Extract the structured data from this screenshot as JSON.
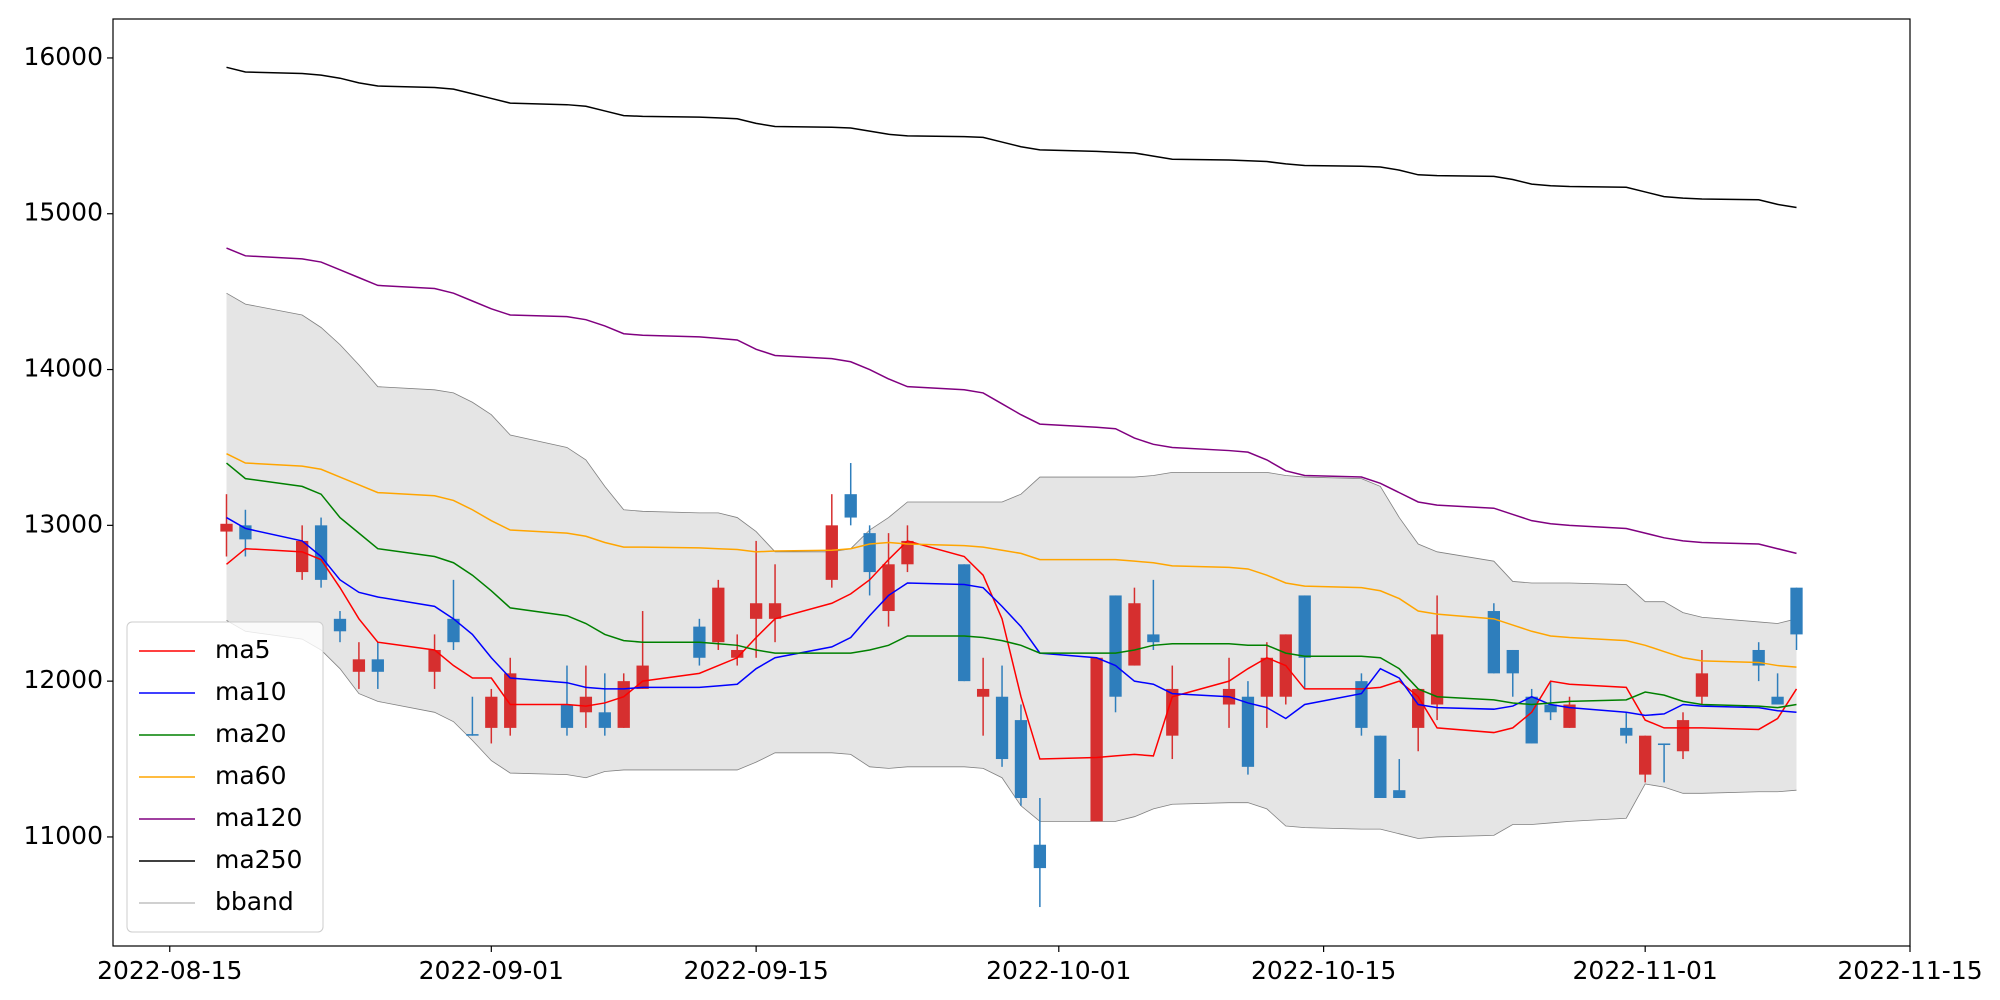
{
  "chart_data": {
    "type": "candlestick",
    "x": [
      "2022-08-18",
      "2022-08-19",
      "2022-08-22",
      "2022-08-23",
      "2022-08-24",
      "2022-08-25",
      "2022-08-26",
      "2022-08-29",
      "2022-08-30",
      "2022-08-31",
      "2022-09-01",
      "2022-09-02",
      "2022-09-05",
      "2022-09-06",
      "2022-09-07",
      "2022-09-08",
      "2022-09-09",
      "2022-09-12",
      "2022-09-13",
      "2022-09-14",
      "2022-09-15",
      "2022-09-16",
      "2022-09-19",
      "2022-09-20",
      "2022-09-21",
      "2022-09-22",
      "2022-09-23",
      "2022-09-26",
      "2022-09-27",
      "2022-09-28",
      "2022-09-29",
      "2022-09-30",
      "2022-10-03",
      "2022-10-04",
      "2022-10-05",
      "2022-10-06",
      "2022-10-07",
      "2022-10-10",
      "2022-10-11",
      "2022-10-12",
      "2022-10-13",
      "2022-10-14",
      "2022-10-17",
      "2022-10-18",
      "2022-10-19",
      "2022-10-20",
      "2022-10-21",
      "2022-10-24",
      "2022-10-25",
      "2022-10-26",
      "2022-10-27",
      "2022-10-28",
      "2022-10-31",
      "2022-11-01",
      "2022-11-02",
      "2022-11-03",
      "2022-11-04",
      "2022-11-07",
      "2022-11-08",
      "2022-11-09"
    ],
    "candles": {
      "up_color": "#d62f2f",
      "down_color": "#2e7ebc",
      "open": [
        12960,
        13000,
        12700,
        13000,
        12400,
        12060,
        12140,
        12060,
        12400,
        11660,
        11700,
        11700,
        11850,
        11800,
        11800,
        11700,
        11950,
        12350,
        12250,
        12150,
        12400,
        12400,
        12650,
        13200,
        12950,
        12450,
        12750,
        12750,
        11900,
        11900,
        11750,
        10950,
        11100,
        12550,
        12100,
        12300,
        11650,
        11850,
        11900,
        11900,
        11900,
        12550,
        12000,
        11650,
        11300,
        11700,
        11850,
        12450,
        12200,
        11900,
        11850,
        11700,
        11700,
        11400,
        11600,
        11550,
        11900,
        12200,
        11900,
        12600
      ],
      "high": [
        13200,
        13100,
        13000,
        13050,
        12450,
        12250,
        12250,
        12300,
        12650,
        11900,
        11950,
        12150,
        12100,
        12100,
        12050,
        12050,
        12450,
        12400,
        12650,
        12300,
        12900,
        12750,
        13200,
        13400,
        13000,
        12950,
        13000,
        12750,
        12150,
        12100,
        11850,
        11250,
        12150,
        12550,
        12600,
        12650,
        12100,
        12150,
        12000,
        12250,
        12300,
        12550,
        12050,
        11650,
        11500,
        11950,
        12550,
        12500,
        12200,
        11950,
        12000,
        11900,
        11800,
        11650,
        11600,
        11800,
        12200,
        12250,
        12050,
        12600
      ],
      "low": [
        12800,
        12800,
        12650,
        12600,
        12250,
        11950,
        11950,
        11950,
        12200,
        11650,
        11600,
        11650,
        11650,
        11700,
        11650,
        11700,
        11950,
        12100,
        12200,
        12100,
        12150,
        12250,
        12600,
        13000,
        12550,
        12350,
        12700,
        12000,
        11650,
        11450,
        11200,
        10550,
        11100,
        11800,
        12100,
        12200,
        11500,
        11700,
        11400,
        11700,
        11850,
        11950,
        11650,
        11250,
        11250,
        11550,
        11750,
        12050,
        11900,
        11600,
        11750,
        11700,
        11600,
        11350,
        11350,
        11500,
        11850,
        12000,
        11850,
        12200
      ],
      "close": [
        13010,
        12910,
        12900,
        12650,
        12320,
        12140,
        12060,
        12200,
        12250,
        11650,
        11900,
        12050,
        11700,
        11900,
        11700,
        12000,
        12100,
        12150,
        12600,
        12200,
        12500,
        12500,
        13000,
        13050,
        12700,
        12750,
        12900,
        12000,
        11950,
        11500,
        11250,
        10800,
        12150,
        11900,
        12500,
        12250,
        11950,
        11950,
        11450,
        12150,
        12300,
        12150,
        11700,
        11250,
        11250,
        11950,
        12300,
        12050,
        12050,
        11600,
        11800,
        11850,
        11650,
        11650,
        11590,
        11750,
        12050,
        12100,
        11850,
        12300
      ]
    },
    "series": [
      {
        "name": "ma5",
        "color": "#ff0000",
        "values": [
          12750,
          12850,
          12830,
          12780,
          12600,
          12400,
          12250,
          12200,
          12100,
          12020,
          12020,
          11850,
          11850,
          11840,
          11860,
          11900,
          12000,
          12050,
          12100,
          12150,
          12280,
          12400,
          12500,
          12560,
          12650,
          12780,
          12900,
          12800,
          12680,
          12400,
          11900,
          11500,
          11510,
          11520,
          11530,
          11520,
          11900,
          12000,
          12080,
          12150,
          12100,
          11950,
          11950,
          11960,
          12000,
          11900,
          11700,
          11670,
          11700,
          11800,
          12000,
          11980,
          11960,
          11750,
          11700,
          11700,
          11700,
          11690,
          11760,
          11950
        ]
      },
      {
        "name": "ma10",
        "color": "#0000ff",
        "values": [
          13050,
          12980,
          12900,
          12800,
          12650,
          12570,
          12540,
          12480,
          12400,
          12300,
          12150,
          12020,
          11990,
          11960,
          11950,
          11950,
          11960,
          11960,
          11970,
          11980,
          12080,
          12150,
          12220,
          12280,
          12420,
          12550,
          12630,
          12620,
          12600,
          12480,
          12350,
          12180,
          12150,
          12100,
          12000,
          11980,
          11920,
          11900,
          11860,
          11830,
          11760,
          11850,
          11920,
          12080,
          12020,
          11850,
          11830,
          11820,
          11840,
          11900,
          11850,
          11830,
          11800,
          11780,
          11790,
          11850,
          11840,
          11830,
          11810,
          11800
        ]
      },
      {
        "name": "ma20",
        "color": "#008000",
        "values": [
          13400,
          13300,
          13250,
          13200,
          13050,
          12950,
          12850,
          12800,
          12760,
          12680,
          12580,
          12470,
          12420,
          12370,
          12300,
          12260,
          12250,
          12250,
          12240,
          12230,
          12200,
          12180,
          12180,
          12180,
          12200,
          12230,
          12290,
          12290,
          12280,
          12260,
          12230,
          12180,
          12180,
          12180,
          12200,
          12230,
          12240,
          12240,
          12230,
          12230,
          12180,
          12160,
          12160,
          12150,
          12080,
          11950,
          11900,
          11880,
          11860,
          11850,
          11860,
          11870,
          11880,
          11930,
          11910,
          11870,
          11850,
          11840,
          11830,
          11850
        ]
      },
      {
        "name": "ma60",
        "color": "#ffa500",
        "values": [
          13460,
          13400,
          13380,
          13360,
          13310,
          13260,
          13210,
          13190,
          13160,
          13100,
          13030,
          12970,
          12950,
          12930,
          12890,
          12860,
          12860,
          12855,
          12850,
          12845,
          12830,
          12835,
          12840,
          12850,
          12880,
          12890,
          12880,
          12870,
          12860,
          12840,
          12820,
          12780,
          12780,
          12780,
          12770,
          12760,
          12740,
          12730,
          12720,
          12680,
          12630,
          12610,
          12600,
          12580,
          12530,
          12450,
          12430,
          12400,
          12360,
          12320,
          12290,
          12280,
          12260,
          12230,
          12190,
          12150,
          12130,
          12120,
          12100,
          12090
        ]
      },
      {
        "name": "ma120",
        "color": "#800080",
        "values": [
          14780,
          14730,
          14710,
          14690,
          14640,
          14590,
          14540,
          14520,
          14490,
          14440,
          14390,
          14350,
          14340,
          14320,
          14280,
          14230,
          14220,
          14210,
          14200,
          14190,
          14130,
          14090,
          14070,
          14050,
          14000,
          13940,
          13890,
          13870,
          13850,
          13780,
          13710,
          13650,
          13630,
          13620,
          13560,
          13520,
          13500,
          13480,
          13470,
          13420,
          13350,
          13320,
          13310,
          13270,
          13210,
          13150,
          13130,
          13110,
          13070,
          13030,
          13010,
          13000,
          12980,
          12950,
          12920,
          12900,
          12890,
          12880,
          12850,
          12820
        ]
      },
      {
        "name": "ma250",
        "color": "#000000",
        "values": [
          15940,
          15910,
          15900,
          15890,
          15870,
          15840,
          15820,
          15810,
          15800,
          15770,
          15740,
          15710,
          15700,
          15690,
          15660,
          15630,
          15625,
          15620,
          15615,
          15610,
          15580,
          15560,
          15555,
          15550,
          15530,
          15510,
          15500,
          15495,
          15490,
          15460,
          15430,
          15410,
          15400,
          15395,
          15390,
          15370,
          15350,
          15345,
          15340,
          15335,
          15320,
          15310,
          15305,
          15300,
          15280,
          15250,
          15245,
          15240,
          15220,
          15190,
          15180,
          15175,
          15170,
          15140,
          15110,
          15100,
          15095,
          15090,
          15060,
          15040
        ]
      }
    ],
    "bband": {
      "name": "bband",
      "color": "#808080",
      "fill": "#e5e5e5",
      "upper": [
        14490,
        14420,
        14350,
        14270,
        14160,
        14030,
        13890,
        13870,
        13850,
        13790,
        13710,
        13580,
        13500,
        13420,
        13250,
        13100,
        13090,
        13080,
        13080,
        13050,
        12960,
        12830,
        12830,
        12850,
        12970,
        13050,
        13150,
        13150,
        13150,
        13150,
        13200,
        13310,
        13310,
        13310,
        13310,
        13320,
        13340,
        13340,
        13340,
        13340,
        13320,
        13310,
        13300,
        13250,
        13050,
        12880,
        12830,
        12770,
        12640,
        12630,
        12630,
        12630,
        12620,
        12510,
        12510,
        12440,
        12410,
        12380,
        12370,
        12400
      ],
      "lower": [
        12390,
        12320,
        12270,
        12200,
        12080,
        11920,
        11870,
        11800,
        11740,
        11620,
        11490,
        11410,
        11400,
        11380,
        11420,
        11430,
        11430,
        11430,
        11430,
        11430,
        11480,
        11540,
        11540,
        11530,
        11450,
        11440,
        11450,
        11450,
        11440,
        11380,
        11200,
        11100,
        11100,
        11100,
        11130,
        11180,
        11210,
        11220,
        11220,
        11180,
        11070,
        11060,
        11050,
        11050,
        11020,
        10990,
        11000,
        11010,
        11080,
        11080,
        11090,
        11100,
        11120,
        11340,
        11320,
        11280,
        11280,
        11290,
        11290,
        11300
      ]
    },
    "xlim": [
      "2022-08-12",
      "2022-11-15"
    ],
    "xticks": [
      "2022-08-15",
      "2022-09-01",
      "2022-09-15",
      "2022-10-01",
      "2022-10-15",
      "2022-11-01",
      "2022-11-15"
    ],
    "ylim": [
      10300,
      16250
    ],
    "yticks": [
      11000,
      12000,
      13000,
      14000,
      15000,
      16000
    ],
    "legend": "lower left"
  }
}
